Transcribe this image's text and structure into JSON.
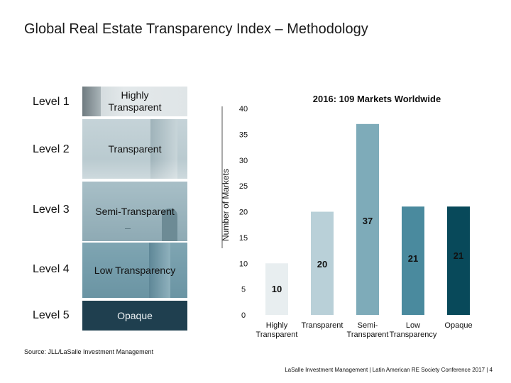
{
  "title": "Global Real Estate Transparency Index – Methodology",
  "levels": [
    {
      "level": "Level 1",
      "name": "Highly Transparent"
    },
    {
      "level": "Level 2",
      "name": "Transparent"
    },
    {
      "level": "Level 3",
      "name": "Semi-Transparent"
    },
    {
      "level": "Level 4",
      "name": "Low Transparency"
    },
    {
      "level": "Level 5",
      "name": "Opaque"
    }
  ],
  "source": "Source: JLL/LaSalle Investment Management",
  "footer": "LaSalle Investment Management  |  Latin American RE Society Conference 2017  |  4",
  "chart_data": {
    "type": "bar",
    "title": "2016: 109 Markets Worldwide",
    "ylabel": "Number of Markets",
    "xlabel": "",
    "ylim": [
      0,
      40
    ],
    "yticks": [
      0,
      5,
      10,
      15,
      20,
      25,
      30,
      35,
      40
    ],
    "categories": [
      [
        "Highly",
        "Transparent"
      ],
      [
        "Transparent"
      ],
      [
        "Semi-",
        "Transparent"
      ],
      [
        "Low",
        "Transparency"
      ],
      [
        "Opaque"
      ]
    ],
    "values": [
      10,
      20,
      37,
      21,
      21
    ],
    "colors": [
      "#e8eef0",
      "#b9d0d8",
      "#7eabb9",
      "#4a8a9e",
      "#08495a"
    ],
    "grid": false
  }
}
